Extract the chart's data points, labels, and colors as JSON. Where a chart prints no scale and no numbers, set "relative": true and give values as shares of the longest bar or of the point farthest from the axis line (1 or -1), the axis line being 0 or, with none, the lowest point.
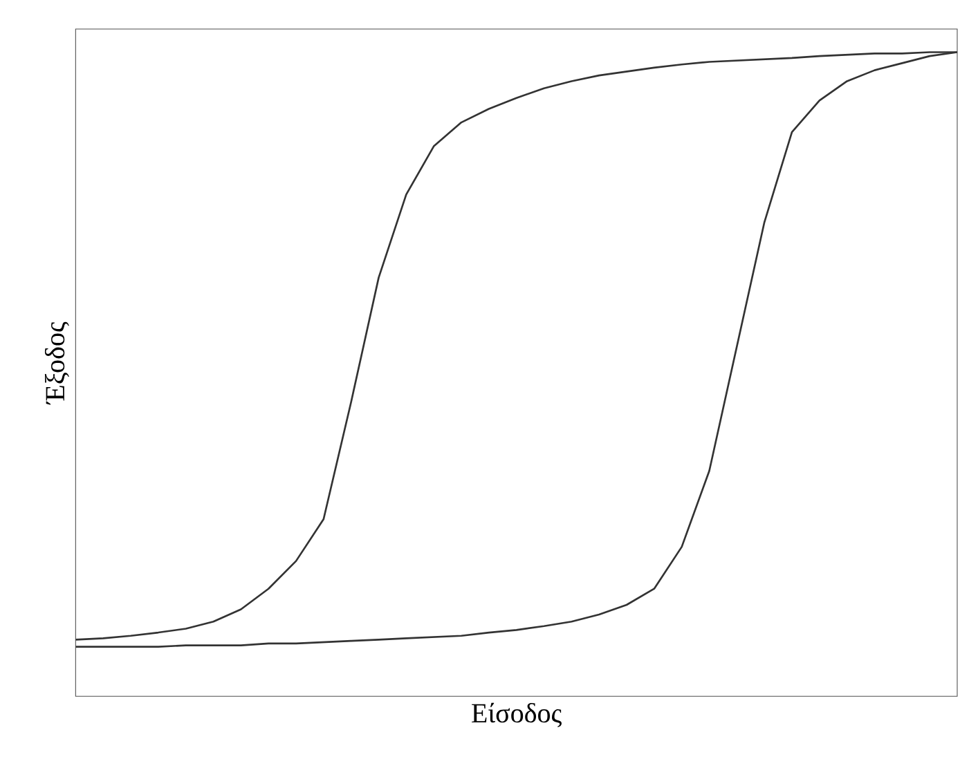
{
  "chart_data": {
    "type": "line",
    "relative": true,
    "xlabel": "Είσοδος",
    "ylabel": "Έξοδος",
    "categories": [
      null,
      null,
      null,
      null,
      null,
      null,
      null,
      null,
      null,
      null,
      null,
      null,
      null,
      null,
      null,
      null,
      null,
      null,
      null,
      null,
      null,
      null,
      null,
      null,
      null,
      null,
      null,
      null,
      null,
      null,
      null,
      null,
      null
    ],
    "series": [
      {
        "color": "#333333",
        "values": [
          0.088,
          0.09,
          0.094,
          0.099,
          0.105,
          0.116,
          0.135,
          0.167,
          0.21,
          0.275,
          0.457,
          0.65,
          0.779,
          0.854,
          0.891,
          0.912,
          0.929,
          0.944,
          0.955,
          0.964,
          0.97,
          0.976,
          0.981,
          0.985,
          0.987,
          0.989,
          0.991,
          0.994,
          0.996,
          0.998,
          0.998,
          1,
          1
        ]
      },
      {
        "color": "#333333",
        "values": [
          0.077,
          0.077,
          0.077,
          0.077,
          0.079,
          0.079,
          0.079,
          0.082,
          0.082,
          0.084,
          0.086,
          0.088,
          0.09,
          0.092,
          0.094,
          0.099,
          0.103,
          0.109,
          0.116,
          0.127,
          0.142,
          0.167,
          0.232,
          0.35,
          0.543,
          0.736,
          0.876,
          0.925,
          0.955,
          0.972,
          0.983,
          0.994,
          1
        ]
      }
    ]
  }
}
